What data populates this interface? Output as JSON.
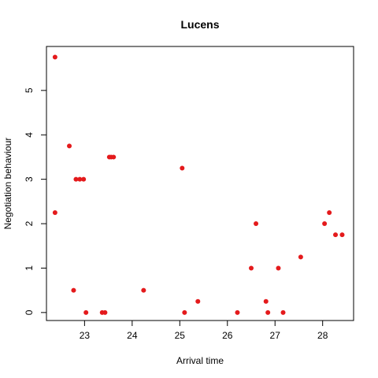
{
  "chart_data": {
    "type": "scatter",
    "title": "Lucens",
    "xlabel": "Arrival time",
    "ylabel": "Negotiation behaviour",
    "xlim": [
      22.2,
      28.65
    ],
    "ylim": [
      -0.18,
      5.99
    ],
    "x_ticks": [
      23,
      24,
      25,
      26,
      27,
      28
    ],
    "y_ticks": [
      0,
      1,
      2,
      3,
      4,
      5
    ],
    "grid": false,
    "legend": "none",
    "point_color": "#e41a1c",
    "points": [
      {
        "x": 22.38,
        "y": 5.75
      },
      {
        "x": 22.38,
        "y": 2.25
      },
      {
        "x": 22.68,
        "y": 3.75
      },
      {
        "x": 22.77,
        "y": 0.5
      },
      {
        "x": 22.82,
        "y": 3.0
      },
      {
        "x": 22.9,
        "y": 3.0
      },
      {
        "x": 22.98,
        "y": 3.0
      },
      {
        "x": 23.03,
        "y": 0.0
      },
      {
        "x": 23.37,
        "y": 0.0
      },
      {
        "x": 23.43,
        "y": 0.0
      },
      {
        "x": 23.52,
        "y": 3.5
      },
      {
        "x": 23.56,
        "y": 3.5
      },
      {
        "x": 23.61,
        "y": 3.5
      },
      {
        "x": 24.24,
        "y": 0.5
      },
      {
        "x": 25.05,
        "y": 3.25
      },
      {
        "x": 25.1,
        "y": 0.0
      },
      {
        "x": 25.38,
        "y": 0.25
      },
      {
        "x": 26.21,
        "y": 0.0
      },
      {
        "x": 26.5,
        "y": 1.0
      },
      {
        "x": 26.6,
        "y": 2.0
      },
      {
        "x": 26.81,
        "y": 0.25
      },
      {
        "x": 26.85,
        "y": 0.0
      },
      {
        "x": 27.07,
        "y": 1.0
      },
      {
        "x": 27.17,
        "y": 0.0
      },
      {
        "x": 27.54,
        "y": 1.25
      },
      {
        "x": 28.04,
        "y": 2.0
      },
      {
        "x": 28.14,
        "y": 2.25
      },
      {
        "x": 28.27,
        "y": 1.75
      },
      {
        "x": 28.41,
        "y": 1.75
      }
    ]
  }
}
